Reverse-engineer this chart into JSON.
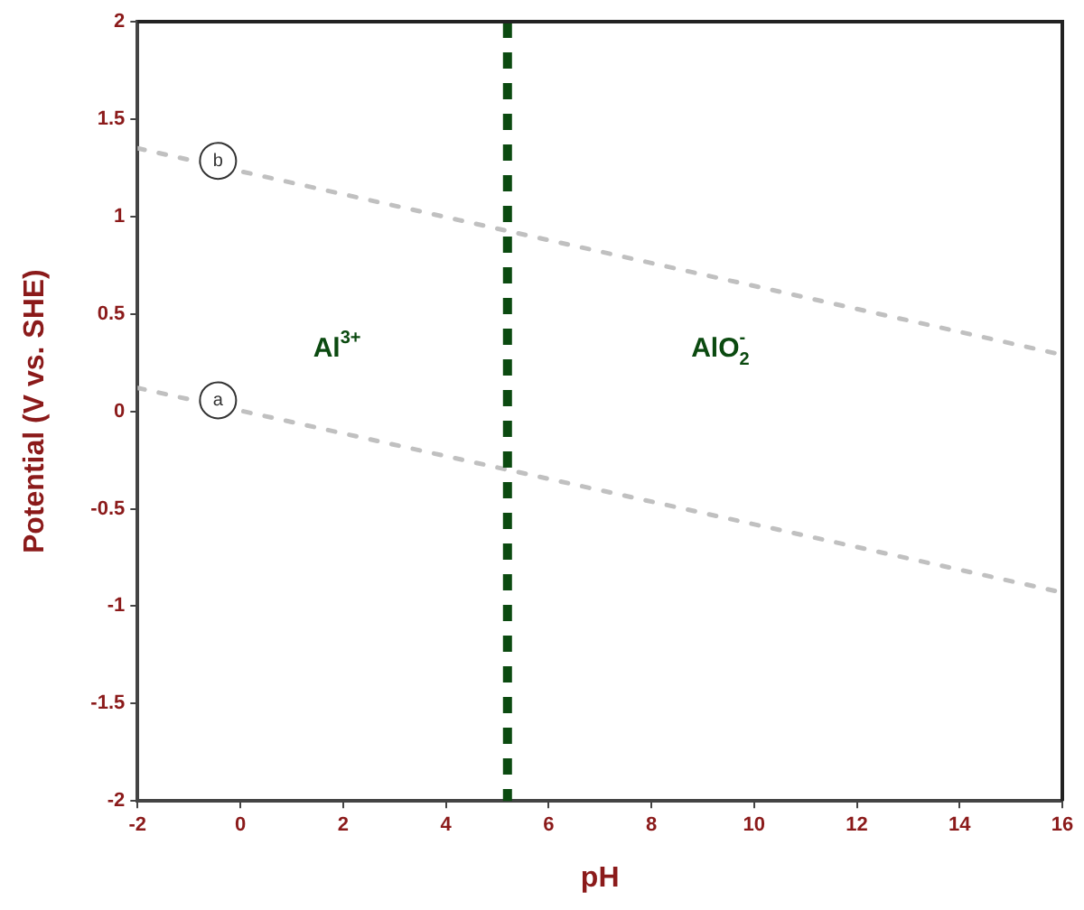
{
  "chart_data": {
    "type": "line",
    "xlabel": "pH",
    "ylabel": "Potential (V vs. SHE)",
    "series": [
      {
        "name": "a",
        "color": "#c0c0c0",
        "values": [
          0.12,
          -0.93
        ]
      },
      {
        "name": "b",
        "color": "#c0c0c0",
        "values": [
          1.35,
          0.29
        ]
      }
    ],
    "x": [
      -2,
      16
    ],
    "xlim": [
      -2,
      16
    ],
    "xticks": [
      -2,
      0,
      2,
      4,
      6,
      8,
      10,
      12,
      14,
      16
    ],
    "ylim": [
      -2,
      2
    ],
    "yticks": [
      -2,
      -1.5,
      -1,
      -0.5,
      0,
      0.5,
      1,
      1.5,
      2
    ],
    "ref_lines": [
      {
        "axis": "x",
        "value": 5.2,
        "color": "#0b4a10",
        "line_style": "dashed"
      }
    ],
    "annotations": [
      "Al$^{3+}$",
      "AlO$_{2}$$^{-}$"
    ],
    "grid": false,
    "legend": false,
    "marker": "none",
    "line_style": "dashed"
  }
}
